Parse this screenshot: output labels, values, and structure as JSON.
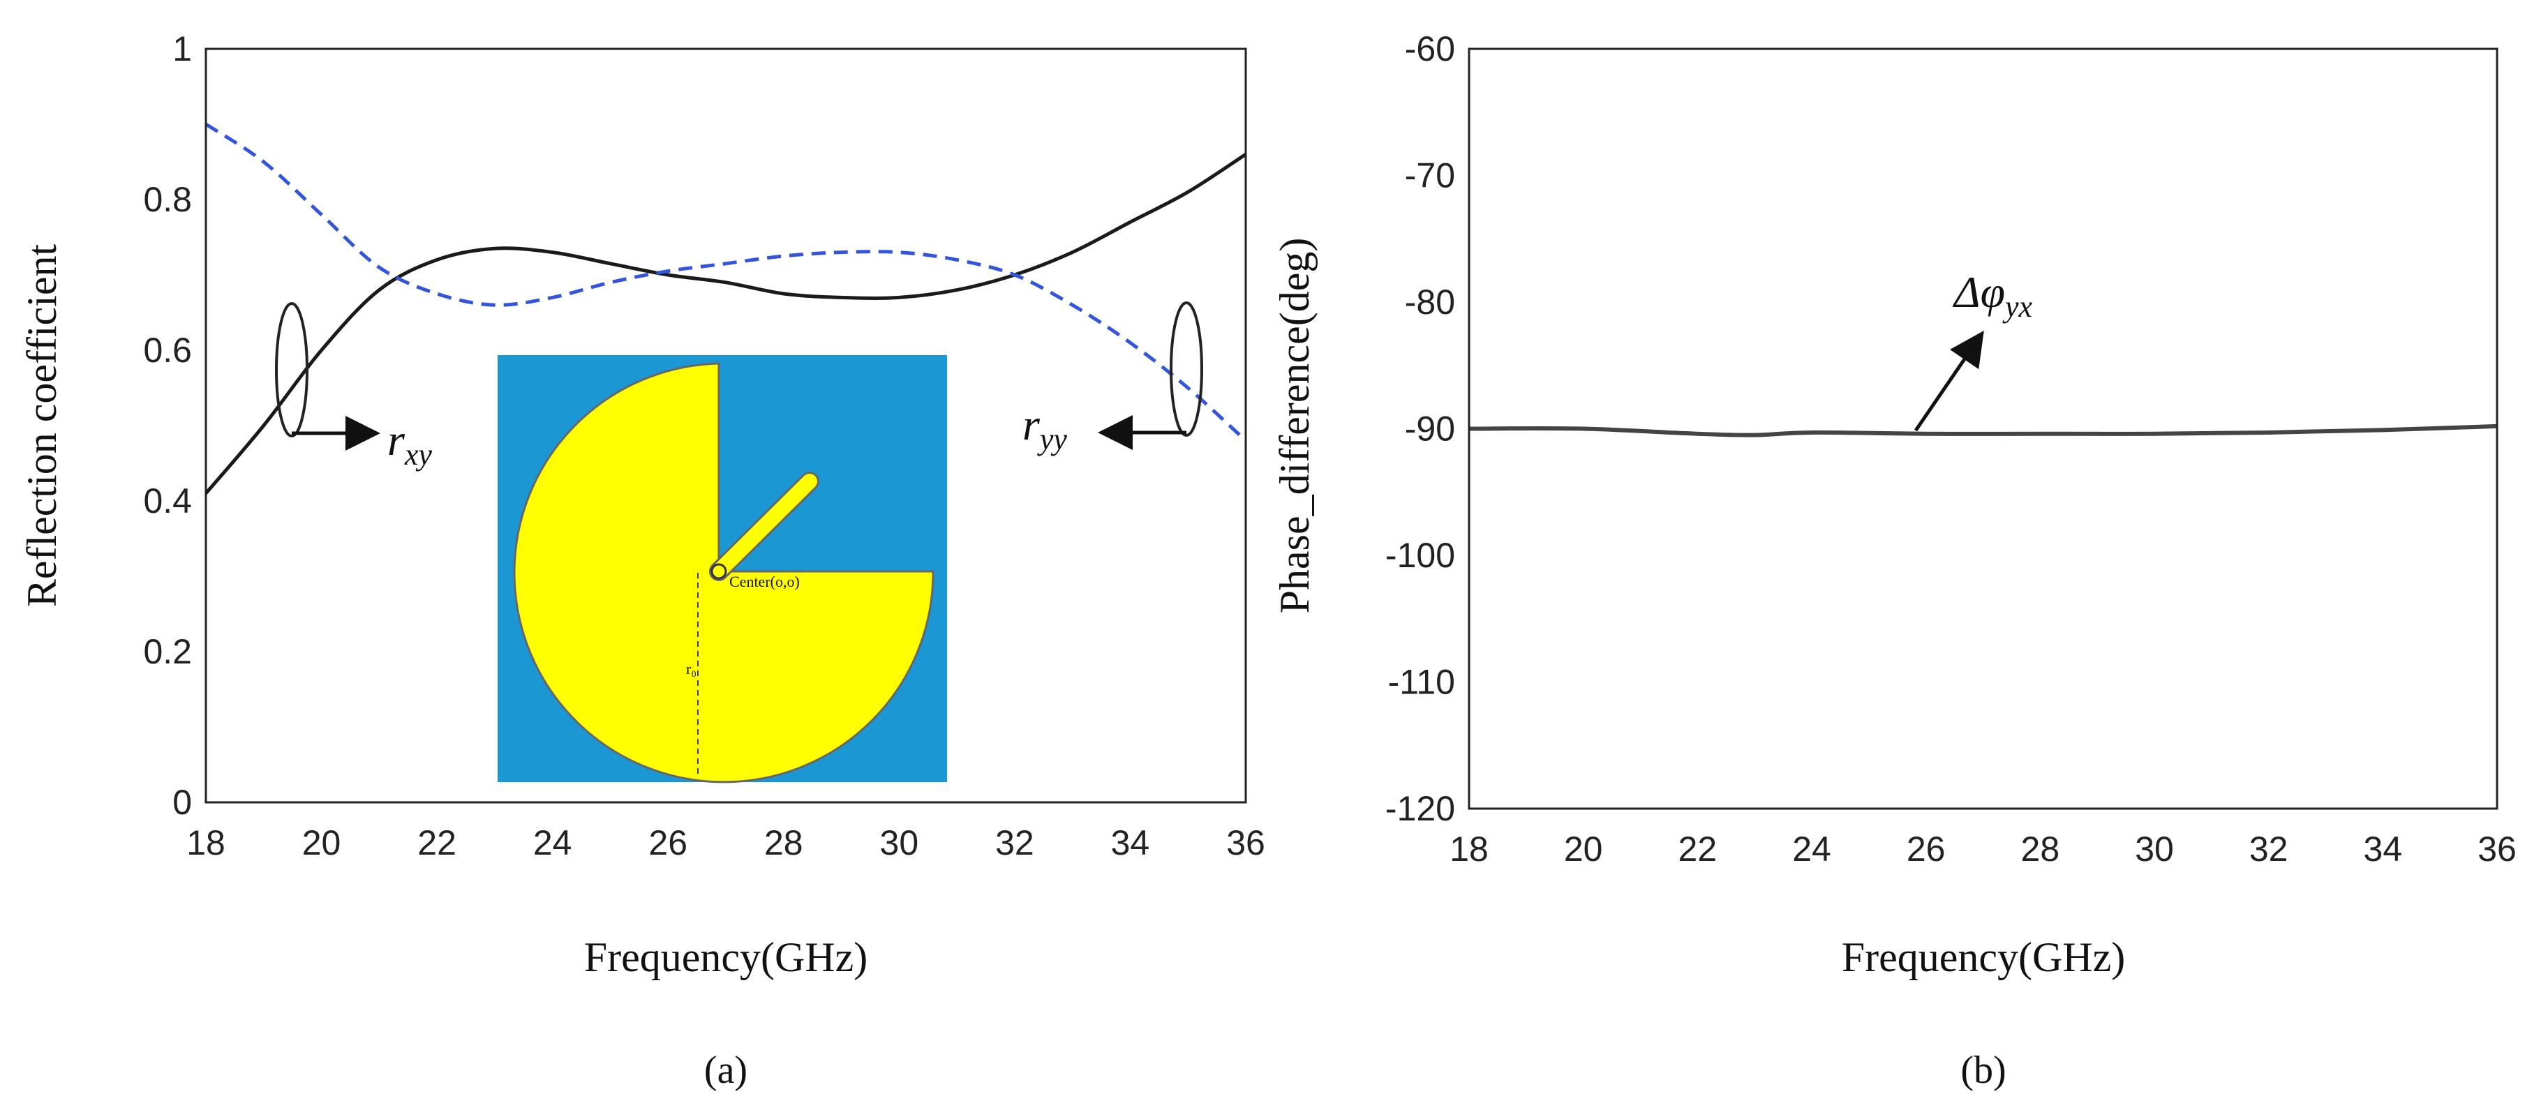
{
  "chart_data": [
    {
      "type": "line",
      "panel_label": "(a)",
      "xlabel": "Frequency(GHz)",
      "ylabel": "Reflection coefficient",
      "xlim": [
        18,
        36
      ],
      "ylim": [
        0,
        1
      ],
      "x_ticks": [
        "18",
        "20",
        "22",
        "24",
        "26",
        "28",
        "30",
        "32",
        "34",
        "36"
      ],
      "y_ticks": [
        "0",
        "0.2",
        "0.4",
        "0.6",
        "0.8",
        "1"
      ],
      "grid": false,
      "series": [
        {
          "style": "solid",
          "color": "#1a1a1a",
          "x": [
            18,
            19,
            20,
            21,
            22,
            23,
            24,
            25,
            26,
            27,
            28,
            29,
            30,
            31,
            32,
            33,
            34,
            35,
            36
          ],
          "y": [
            0.41,
            0.5,
            0.6,
            0.68,
            0.72,
            0.735,
            0.73,
            0.715,
            0.7,
            0.69,
            0.675,
            0.67,
            0.67,
            0.68,
            0.7,
            0.73,
            0.77,
            0.81,
            0.86
          ]
        },
        {
          "style": "dashed",
          "color": "#3355dd",
          "x": [
            18,
            19,
            20,
            21,
            22,
            23,
            24,
            25,
            26,
            27,
            28,
            29,
            30,
            31,
            32,
            33,
            34,
            35,
            36
          ],
          "y": [
            0.9,
            0.85,
            0.78,
            0.71,
            0.675,
            0.66,
            0.67,
            0.69,
            0.705,
            0.715,
            0.725,
            0.73,
            0.73,
            0.72,
            0.7,
            0.66,
            0.61,
            0.55,
            0.48
          ]
        }
      ],
      "annotations": [
        {
          "base": "r",
          "sub": "xy"
        },
        {
          "base": "r",
          "sub": "yy"
        }
      ],
      "inset": {
        "text": "Center(o,o)",
        "small_label": "r₀"
      }
    },
    {
      "type": "line",
      "panel_label": "(b)",
      "xlabel": "Frequency(GHz)",
      "ylabel": "Phase_difference(deg)",
      "xlim": [
        18,
        36
      ],
      "ylim": [
        -120,
        -60
      ],
      "x_ticks": [
        "18",
        "20",
        "22",
        "24",
        "26",
        "28",
        "30",
        "32",
        "34",
        "36"
      ],
      "y_ticks": [
        "-120",
        "-110",
        "-100",
        "-90",
        "-80",
        "-70",
        "-60"
      ],
      "grid": false,
      "series": [
        {
          "style": "solid",
          "color": "#444444",
          "x": [
            18,
            20,
            22,
            23,
            24,
            26,
            28,
            30,
            32,
            34,
            36
          ],
          "y": [
            -90,
            -90,
            -90.4,
            -90.5,
            -90.3,
            -90.4,
            -90.4,
            -90.4,
            -90.3,
            -90.1,
            -89.8
          ]
        }
      ],
      "annotations": [
        {
          "base": "Δφ",
          "sub": "yx"
        }
      ]
    }
  ]
}
